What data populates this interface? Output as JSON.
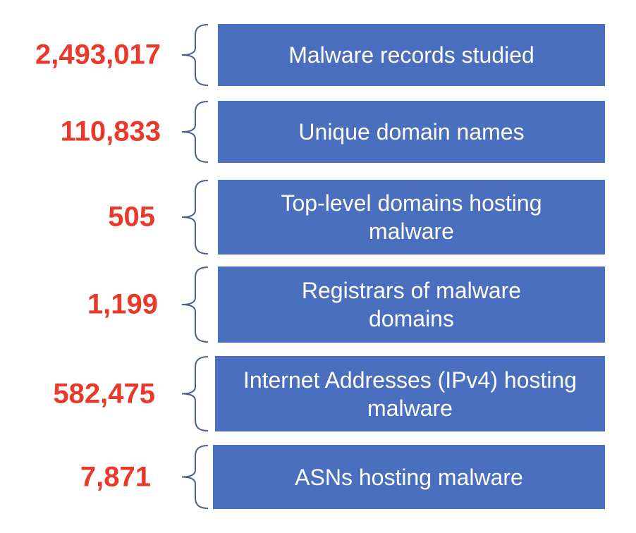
{
  "colors": {
    "number": "#e8392a",
    "box": "#4a6fbf",
    "brace": "#4a5f8a",
    "box_text": "#ffffff"
  },
  "items": [
    {
      "value": "2,493,017",
      "label": "Malware records studied"
    },
    {
      "value": "110,833",
      "label": "Unique domain names"
    },
    {
      "value": "505",
      "label": "Top-level domains hosting malware"
    },
    {
      "value": "1,199",
      "label": "Registrars of malware domains"
    },
    {
      "value": "582,475",
      "label": "Internet Addresses (IPv4) hosting malware"
    },
    {
      "value": "7,871",
      "label": "ASNs hosting malware"
    }
  ]
}
